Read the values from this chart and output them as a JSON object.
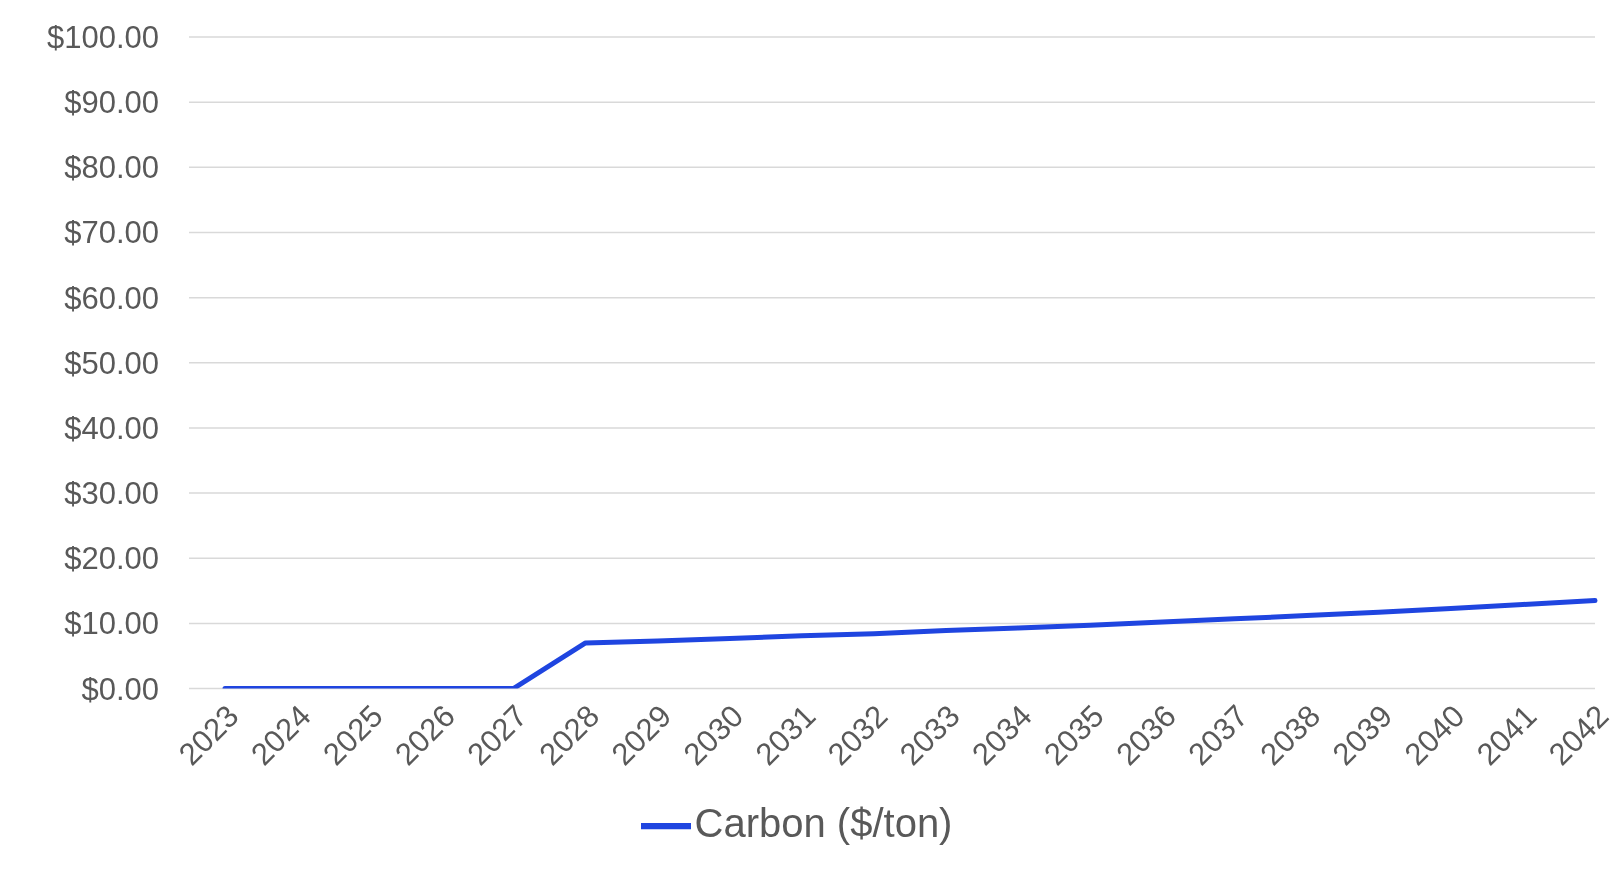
{
  "chart_data": {
    "type": "line",
    "categories": [
      "2023",
      "2024",
      "2025",
      "2026",
      "2027",
      "2028",
      "2029",
      "2030",
      "2031",
      "2032",
      "2033",
      "2034",
      "2035",
      "2036",
      "2037",
      "2038",
      "2039",
      "2040",
      "2041",
      "2042"
    ],
    "series": [
      {
        "name": "Carbon ($/ton)",
        "color": "#1f45e0",
        "values": [
          0,
          0,
          0,
          0,
          0,
          7.0,
          7.3,
          7.7,
          8.1,
          8.4,
          8.9,
          9.3,
          9.7,
          10.2,
          10.7,
          11.2,
          11.7,
          12.3,
          12.9,
          13.5
        ]
      }
    ],
    "ylim": [
      0,
      100
    ],
    "yticks": [
      {
        "value": 0,
        "label": "$0.00"
      },
      {
        "value": 10,
        "label": "$10.00"
      },
      {
        "value": 20,
        "label": "$20.00"
      },
      {
        "value": 30,
        "label": "$30.00"
      },
      {
        "value": 40,
        "label": "$40.00"
      },
      {
        "value": 50,
        "label": "$50.00"
      },
      {
        "value": 60,
        "label": "$60.00"
      },
      {
        "value": 70,
        "label": "$70.00"
      },
      {
        "value": 80,
        "label": "$80.00"
      },
      {
        "value": 90,
        "label": "$90.00"
      },
      {
        "value": 100,
        "label": "$100.00"
      }
    ],
    "grid": "y",
    "legend": "bottom",
    "marker": "none",
    "line_style": "solid"
  }
}
